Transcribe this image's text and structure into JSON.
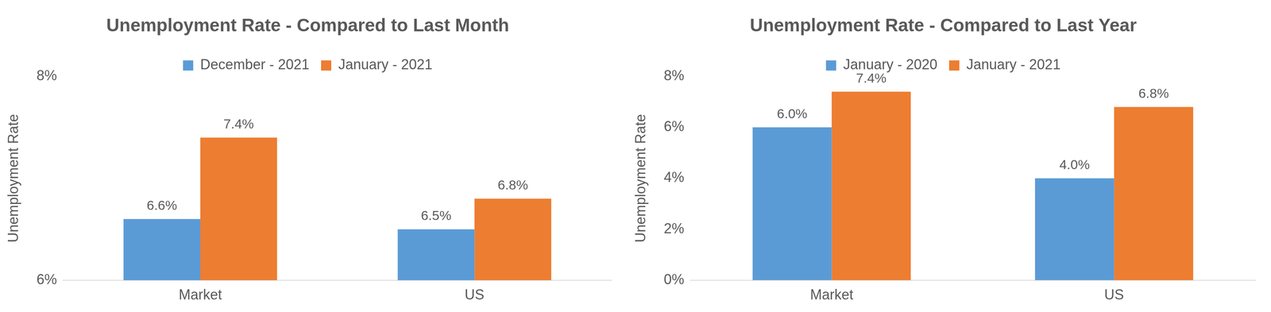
{
  "chart_data": [
    {
      "type": "bar",
      "title": "Unemployment Rate - Compared to Last Month",
      "y_label": "Unemployment Rate",
      "categories": [
        "Market",
        "US"
      ],
      "series": [
        {
          "name": "December - 2021",
          "color": "#5b9bd5",
          "values": [
            6.6,
            6.5
          ],
          "value_labels": [
            "6.6%",
            "6.5%"
          ]
        },
        {
          "name": "January - 2021",
          "color": "#ed7d31",
          "values": [
            7.4,
            6.8
          ],
          "value_labels": [
            "7.4%",
            "6.8%"
          ]
        }
      ],
      "ylim": [
        6,
        8
      ],
      "yticks": [
        {
          "value": 6,
          "label": "6%"
        },
        {
          "value": 8,
          "label": "8%"
        }
      ],
      "grid": false,
      "legend": "top",
      "data_labels": true
    },
    {
      "type": "bar",
      "title": "Unemployment Rate - Compared to Last Year",
      "y_label": "Unemployment Rate",
      "categories": [
        "Market",
        "US"
      ],
      "series": [
        {
          "name": "January - 2020",
          "color": "#5b9bd5",
          "values": [
            6.0,
            4.0
          ],
          "value_labels": [
            "6.0%",
            "4.0%"
          ]
        },
        {
          "name": "January - 2021",
          "color": "#ed7d31",
          "values": [
            7.4,
            6.8
          ],
          "value_labels": [
            "7.4%",
            "6.8%"
          ]
        }
      ],
      "ylim": [
        0,
        8
      ],
      "yticks": [
        {
          "value": 0,
          "label": "0%"
        },
        {
          "value": 2,
          "label": "2%"
        },
        {
          "value": 4,
          "label": "4%"
        },
        {
          "value": 6,
          "label": "6%"
        },
        {
          "value": 8,
          "label": "8%"
        }
      ],
      "grid": false,
      "legend": "top",
      "data_labels": true
    }
  ]
}
